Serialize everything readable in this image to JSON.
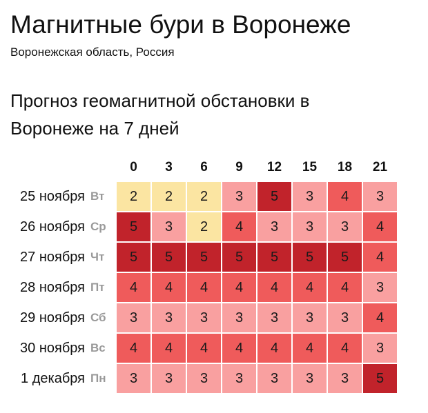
{
  "title": "Магнитные бури в Воронеже",
  "subtitle": "Воронежская область, Россия",
  "heading": "Прогноз геомагнитной обстановки в Воронеже на 7 дней",
  "colors": {
    "2": "#fbe5a2",
    "3": "#f9a0a0",
    "4": "#ef5b5b",
    "5": "#c1232b"
  },
  "hours": [
    "0",
    "3",
    "6",
    "9",
    "12",
    "15",
    "18",
    "21"
  ],
  "days": [
    {
      "date": "25 ноября",
      "dow": "Вт",
      "values": [
        2,
        2,
        2,
        3,
        5,
        3,
        4,
        3
      ]
    },
    {
      "date": "26 ноября",
      "dow": "Ср",
      "values": [
        5,
        3,
        2,
        4,
        3,
        3,
        3,
        4
      ]
    },
    {
      "date": "27 ноября",
      "dow": "Чт",
      "values": [
        5,
        5,
        5,
        5,
        5,
        5,
        5,
        4
      ]
    },
    {
      "date": "28 ноября",
      "dow": "Пт",
      "values": [
        4,
        4,
        4,
        4,
        4,
        4,
        4,
        3
      ]
    },
    {
      "date": "29 ноября",
      "dow": "Сб",
      "values": [
        3,
        3,
        3,
        3,
        3,
        3,
        3,
        4
      ]
    },
    {
      "date": "30 ноября",
      "dow": "Вс",
      "values": [
        4,
        4,
        4,
        4,
        4,
        4,
        4,
        3
      ]
    },
    {
      "date": "1 декабря",
      "dow": "Пн",
      "values": [
        3,
        3,
        3,
        3,
        3,
        3,
        3,
        5
      ]
    }
  ]
}
